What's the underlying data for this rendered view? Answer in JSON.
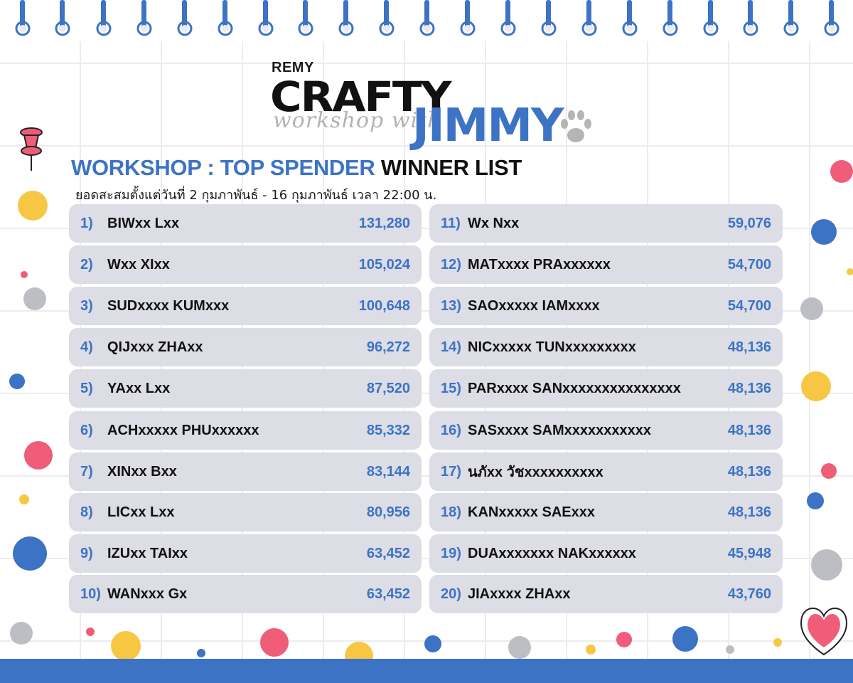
{
  "header": {
    "brand": "REMY",
    "logo_line1": "CRAFTY",
    "logo_line2": "workshop with",
    "logo_line3": "JIMMY"
  },
  "title": {
    "part1": "WORKSHOP : TOP SPENDER",
    "part2": "WINNER LIST"
  },
  "subtitle": "ยอดสะสมตั้งแต่วันที่ 2 กุมภาพันธ์ - 16 กุมภาพันธ์ เวลา 22:00 น.",
  "winners_left": [
    {
      "rank": "1)",
      "name": "BIWxx Lxx",
      "amount": "131,280"
    },
    {
      "rank": "2)",
      "name": "Wxx XIxx",
      "amount": "105,024"
    },
    {
      "rank": "3)",
      "name": "SUDxxxx KUMxxx",
      "amount": "100,648"
    },
    {
      "rank": "4)",
      "name": "QIJxxx ZHAxx",
      "amount": "96,272"
    },
    {
      "rank": "5)",
      "name": "YAxx Lxx",
      "amount": "87,520"
    },
    {
      "rank": "6)",
      "name": "ACHxxxxx PHUxxxxxx",
      "amount": "85,332"
    },
    {
      "rank": "7)",
      "name": "XINxx Bxx",
      "amount": "83,144"
    },
    {
      "rank": "8)",
      "name": "LICxx Lxx",
      "amount": "80,956"
    },
    {
      "rank": "9)",
      "name": "IZUxx TAIxx",
      "amount": "63,452"
    },
    {
      "rank": "10)",
      "name": "WANxxx Gx",
      "amount": "63,452"
    }
  ],
  "winners_right": [
    {
      "rank": "11)",
      "name": "Wx Nxx",
      "amount": "59,076"
    },
    {
      "rank": "12)",
      "name": "MATxxxx PRAxxxxxx",
      "amount": "54,700"
    },
    {
      "rank": "13)",
      "name": "SAOxxxxx IAMxxxx",
      "amount": "54,700"
    },
    {
      "rank": "14)",
      "name": "NICxxxxx TUNxxxxxxxxx",
      "amount": "48,136"
    },
    {
      "rank": "15)",
      "name": "PARxxxx SANxxxxxxxxxxxxxxx",
      "amount": "48,136"
    },
    {
      "rank": "16)",
      "name": "SASxxxx SAMxxxxxxxxxxx",
      "amount": "48,136"
    },
    {
      "rank": "17)",
      "name": "นภัxx วัชxxxxxxxxxx",
      "amount": "48,136"
    },
    {
      "rank": "18)",
      "name": "KANxxxxx SAExxx",
      "amount": "48,136"
    },
    {
      "rank": "19)",
      "name": "DUAxxxxxxx NAKxxxxxx",
      "amount": "45,948"
    },
    {
      "rank": "20)",
      "name": "JIAxxxx ZHAxx",
      "amount": "43,760"
    }
  ],
  "colors": {
    "accent_blue": "#3c73c4",
    "row_bg": "#dcdde5",
    "pink": "#ef5d78",
    "yellow": "#f7c744",
    "grey": "#bcbec4"
  }
}
